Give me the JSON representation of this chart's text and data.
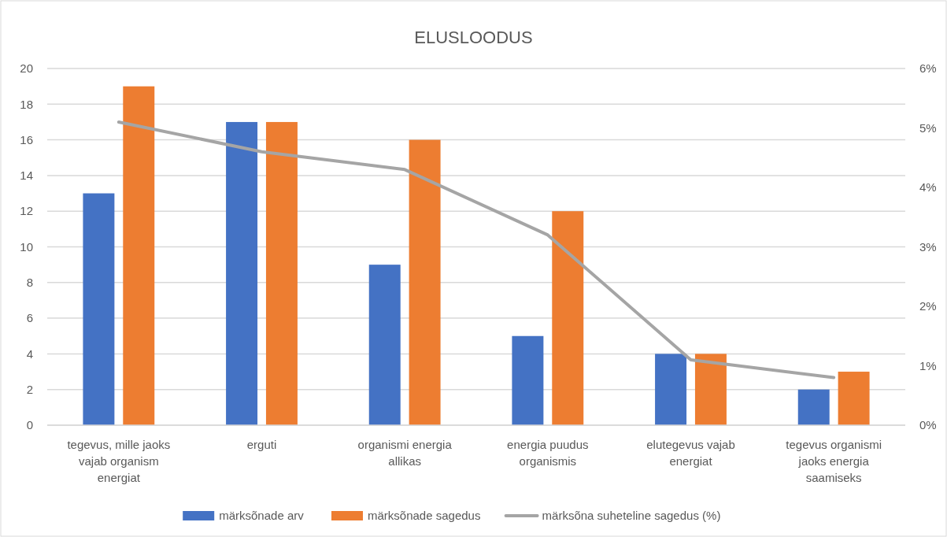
{
  "chart_data": {
    "type": "bar",
    "title": "ELUSLOODUS",
    "categories": [
      "tegevus, mille jaoks vajab organism energiat",
      "erguti",
      "organismi energia allikas",
      "energia puudus organismis",
      "elutegevus vajab energiat",
      "tegevus organismi jaoks energia saamiseks"
    ],
    "series": [
      {
        "name": "märksõnade arv",
        "color": "#4472c4",
        "values": [
          13,
          17,
          9,
          5,
          4,
          2
        ]
      },
      {
        "name": "märksõnade sagedus",
        "color": "#ed7d31",
        "values": [
          19,
          17,
          16,
          12,
          4,
          3
        ]
      },
      {
        "name": "märksõna suheteline sagedus (%)",
        "type": "line",
        "axis": "y2",
        "color": "#a5a5a5",
        "values": [
          5.1,
          4.6,
          4.3,
          3.2,
          1.1,
          0.8
        ]
      }
    ],
    "ylim": [
      0,
      20
    ],
    "yticks": [
      0,
      2,
      4,
      6,
      8,
      10,
      12,
      14,
      16,
      18,
      20
    ],
    "y2lim": [
      0,
      6
    ],
    "y2ticks": [
      {
        "value": 0,
        "label": "0%"
      },
      {
        "value": 1,
        "label": "1%"
      },
      {
        "value": 2,
        "label": "2%"
      },
      {
        "value": 3,
        "label": "3%"
      },
      {
        "value": 4,
        "label": "4%"
      },
      {
        "value": 5,
        "label": "5%"
      },
      {
        "value": 6,
        "label": "6%"
      }
    ],
    "grid": "y",
    "legend": "bottom",
    "marker": "none"
  }
}
